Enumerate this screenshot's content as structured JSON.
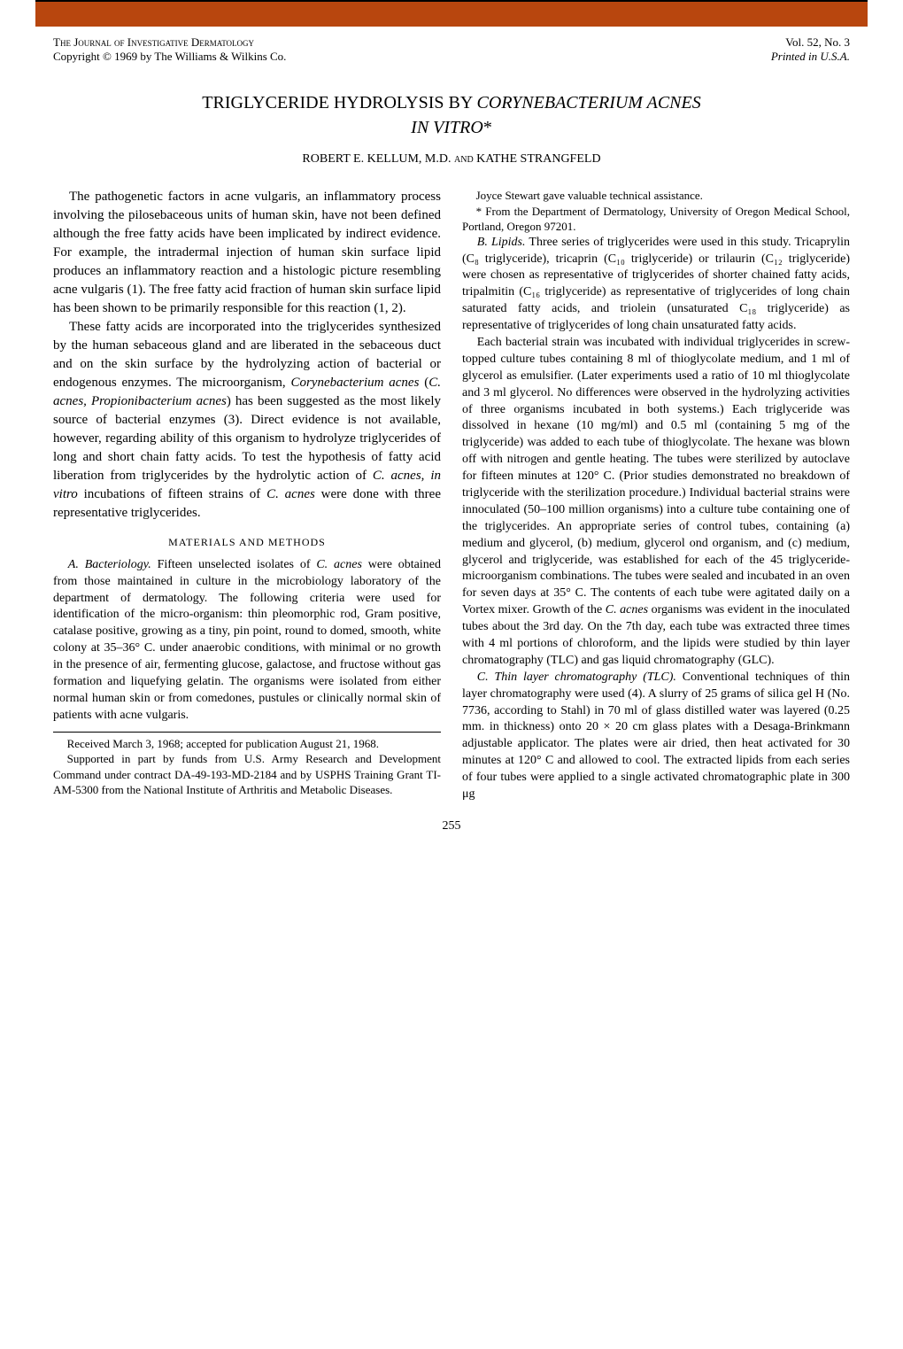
{
  "meta": {
    "journal": "The Journal of Investigative Dermatology",
    "copyright": "Copyright © 1969 by The Williams & Wilkins Co.",
    "volume": "Vol. 52, No. 3",
    "printed": "Printed in U.S.A."
  },
  "title": {
    "line1": "TRIGLYCERIDE HYDROLYSIS BY ",
    "species": "CORYNEBACTERIUM ACNES",
    "line2": "IN VITRO",
    "asterisk": "*"
  },
  "authors": "ROBERT E. KELLUM, M.D. and KATHE STRANGFELD",
  "body": {
    "p1": "The pathogenetic factors in acne vulgaris, an inflammatory process involving the pilosebaceous units of human skin, have not been defined although the free fatty acids have been implicated by indirect evidence. For example, the intradermal injection of human skin surface lipid produces an inflammatory reaction and a histologic picture resembling acne vulgaris (1). The free fatty acid fraction of human skin surface lipid has been shown to be primarily responsible for this reaction (1, 2).",
    "p2_a": "These fatty acids are incorporated into the triglycerides synthesized by the human sebaceous gland and are liberated in the sebaceous duct and on the skin surface by the hydrolyzing action of bacterial or endogenous enzymes. The microorganism, ",
    "p2_species1": "Corynebacterium acnes",
    "p2_b": " (",
    "p2_species2": "C. acnes, Propionibacterium acnes",
    "p2_c": ") has been suggested as the most likely source of bacterial enzymes (3). Direct evidence is not available, however, regarding ability of this organism to hydrolyze triglycerides of long and short chain fatty acids. To test the hypothesis of fatty acid liberation from triglycerides by the hydrolytic action of ",
    "p2_species3": "C. acnes, in vitro",
    "p2_d": " incubations of fifteen strains of ",
    "p2_species4": "C. acnes",
    "p2_e": " were done with three representative triglycerides."
  },
  "materials_heading": "MATERIALS AND METHODS",
  "methods": {
    "a_label": "A. Bacteriology.",
    "a_text_1": " Fifteen unselected isolates of ",
    "a_species": "C. acnes",
    "a_text_2": " were obtained from those maintained in culture in the microbiology laboratory of the department of dermatology. The following criteria were used for identification of the micro-organism: thin pleomorphic rod, Gram positive, catalase positive, growing as a tiny, pin point, round to domed, smooth, white colony at 35–36° C. under anaerobic conditions, with minimal or no growth in the presence of air, fermenting glucose, galactose, and fructose without gas formation and liquefying gelatin. The organisms were isolated from either normal human skin or from comedones, pustules or clinically normal skin of patients with acne vulgaris.",
    "b_label": "B. Lipids.",
    "b_text_1": " Three series of triglycerides were used in this study. Tricaprylin (C₈ triglyceride), tricaprin (C₁₀ triglyceride) or trilaurin (C₁₂ triglyceride) were chosen as representative of triglycerides of shorter chained fatty acids, tripalmitin (C₁₆ triglyceride) as representative of triglycerides of long chain saturated fatty acids, and triolein (unsaturated C₁₈ triglyceride) as representative of triglycerides of long chain unsaturated fatty acids.",
    "b_text_2a": "Each bacterial strain was incubated with individual triglycerides in screw-topped culture tubes containing 8 ml of thioglycolate medium, and 1 ml of glycerol as emulsifier. (Later experiments used a ratio of 10 ml thioglycolate and 3 ml glycerol. No differences were observed in the hydrolyzing activities of three organisms incubated in both systems.) Each triglyceride was dissolved in hexane (10 mg/ml) and 0.5 ml (containing 5 mg of the triglyceride) was added to each tube of thioglycolate. The hexane was blown off with nitrogen and gentle heating. The tubes were sterilized by autoclave for fifteen minutes at 120° C. (Prior studies demonstrated no breakdown of triglyceride with the sterilization procedure.) Individual bacterial strains were innoculated (50–100 million organisms) into a culture tube containing one of the triglycerides. An appropriate series of control tubes, containing (a) medium and glycerol, (b) medium, glycerol ond organism, and (c) medium, glycerol and triglyceride, was established for each of the 45 triglyceride-microorganism combinations. The tubes were sealed and incubated in an oven for seven days at 35° C. The contents of each tube were agitated daily on a Vortex mixer. Growth of the ",
    "b_species": "C. acnes",
    "b_text_2b": " organisms was evident in the inoculated tubes about the 3rd day. On the 7th day, each tube was extracted three times with 4 ml portions of chloroform, and the lipids were studied by thin layer chromatography (TLC) and gas liquid chromatography (GLC).",
    "c_label": "C. Thin layer chromatography (TLC).",
    "c_text": " Conventional techniques of thin layer chromatography were used (4). A slurry of 25 grams of silica gel H (No. 7736, according to Stahl) in 70 ml of glass distilled water was layered (0.25 mm. in thickness) onto 20 × 20 cm glass plates with a Desaga-Brinkmann adjustable applicator. The plates were air dried, then heat activated for 30 minutes at 120° C and allowed to cool. The extracted lipids from each series of four tubes were applied to a single activated chromatographic plate in 300 μg"
  },
  "footnotes": {
    "f1": "Received March 3, 1968; accepted for publication August 21, 1968.",
    "f2": "Supported in part by funds from U.S. Army Research and Development Command under contract DA-49-193-MD-2184 and by USPHS Training Grant TI-AM-5300 from the National Institute of Arthritis and Metabolic Diseases.",
    "f3": "Joyce Stewart gave valuable technical assistance.",
    "f4": "* From the Department of Dermatology, University of Oregon Medical School, Portland, Oregon 97201."
  },
  "page_number": "255",
  "colors": {
    "header_bar": "#b8460e",
    "text": "#000000",
    "background": "#ffffff"
  }
}
